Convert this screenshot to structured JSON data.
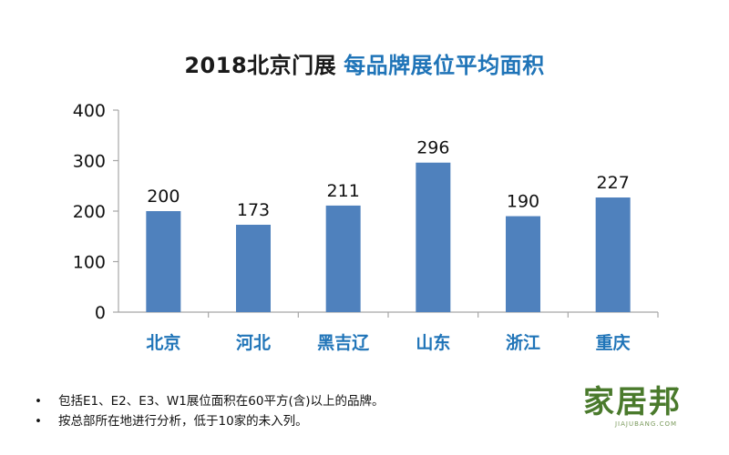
{
  "title": {
    "main": "2018北京门展",
    "sub": "每品牌展位平均面积"
  },
  "colors": {
    "bar": "#4f81bd",
    "category_label": "#1f74b8",
    "axis": "#a6a6a6",
    "title_sub": "#1f74b8",
    "logo": "#4a7a2c"
  },
  "chart_data": {
    "type": "bar",
    "title": "2018北京门展 每品牌展位平均面积",
    "categories": [
      "北京",
      "河北",
      "黑吉辽",
      "山东",
      "浙江",
      "重庆"
    ],
    "values": [
      200,
      173,
      211,
      296,
      190,
      227
    ],
    "data_labels": [
      "200",
      "173",
      "211",
      "296",
      "190",
      "227"
    ],
    "ylim": [
      0,
      400
    ],
    "yticks": [
      0,
      100,
      200,
      300,
      400
    ],
    "ytick_labels": [
      "0",
      "100",
      "200",
      "300",
      "400"
    ],
    "xlabel": "",
    "ylabel": "",
    "grid": false,
    "legend": "none"
  },
  "notes": [
    "包括E1、E2、E3、W1展位面积在60平方(含)以上的品牌。",
    "按总部所在地进行分析，低于10家的未入列。"
  ],
  "logo": {
    "text": "家居邦",
    "sub": "JIAJUBANG.COM"
  }
}
